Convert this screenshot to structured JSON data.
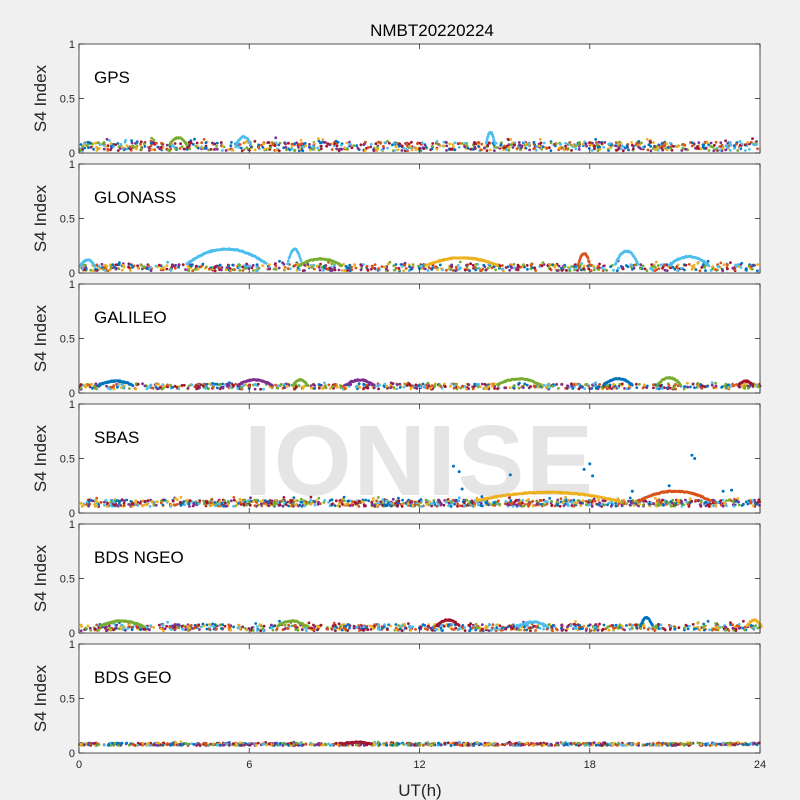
{
  "chart_data": {
    "type": "scatter",
    "title": "NMBT20220224",
    "xlabel": "UT(h)",
    "ylabel": "S4 Index",
    "xlim": [
      0,
      24
    ],
    "ylim": [
      0,
      1
    ],
    "x_ticks": [
      "0",
      "6",
      "12",
      "18",
      "24"
    ],
    "y_ticks": [
      "0",
      "0.5",
      "1"
    ],
    "watermark": "IONISE",
    "series_colors": [
      "#0072BD",
      "#D95319",
      "#EDB120",
      "#7E2F8E",
      "#77AC30",
      "#4DBEEE",
      "#A2142F"
    ],
    "panels": [
      {
        "label": "GPS",
        "baseline": 0.06,
        "spread": 0.04,
        "density": 900,
        "bumps": [
          [
            5.8,
            0.15,
            0.5,
            5
          ],
          [
            14.5,
            0.19,
            0.3,
            5
          ],
          [
            3.5,
            0.14,
            0.6,
            4
          ]
        ]
      },
      {
        "label": "GLONASS",
        "baseline": 0.05,
        "spread": 0.03,
        "density": 700,
        "bumps": [
          [
            0.3,
            0.12,
            0.5,
            5
          ],
          [
            5.2,
            0.22,
            2.8,
            5
          ],
          [
            7.6,
            0.22,
            0.5,
            5
          ],
          [
            8.5,
            0.13,
            1.5,
            4
          ],
          [
            13.5,
            0.14,
            2.5,
            2
          ],
          [
            17.8,
            0.18,
            0.4,
            1
          ],
          [
            19.3,
            0.2,
            0.8,
            5
          ],
          [
            21.5,
            0.15,
            1.4,
            5
          ]
        ]
      },
      {
        "label": "GALILEO",
        "baseline": 0.06,
        "spread": 0.025,
        "density": 700,
        "bumps": [
          [
            1.3,
            0.11,
            1.2,
            0
          ],
          [
            6.2,
            0.12,
            1.2,
            3
          ],
          [
            7.8,
            0.12,
            0.5,
            4
          ],
          [
            9.9,
            0.12,
            1.0,
            3
          ],
          [
            15.5,
            0.13,
            1.5,
            4
          ],
          [
            19.0,
            0.13,
            1.0,
            0
          ],
          [
            20.8,
            0.14,
            0.8,
            4
          ],
          [
            23.5,
            0.11,
            0.5,
            6
          ]
        ]
      },
      {
        "label": "SBAS",
        "baseline": 0.09,
        "spread": 0.03,
        "density": 1100,
        "bumps": [
          [
            16.5,
            0.19,
            5.0,
            2
          ],
          [
            21.0,
            0.2,
            2.5,
            1
          ]
        ],
        "outliers": [
          [
            13.2,
            0.43
          ],
          [
            13.4,
            0.38
          ],
          [
            13.5,
            0.22
          ],
          [
            14.2,
            0.15
          ],
          [
            15.2,
            0.35
          ],
          [
            17.8,
            0.4
          ],
          [
            18.0,
            0.45
          ],
          [
            18.1,
            0.34
          ],
          [
            21.6,
            0.53
          ],
          [
            21.7,
            0.5
          ],
          [
            20.8,
            0.25
          ],
          [
            23.0,
            0.21
          ],
          [
            22.7,
            0.2
          ],
          [
            19.5,
            0.2
          ]
        ]
      },
      {
        "label": "BDS NGEO",
        "baseline": 0.05,
        "spread": 0.03,
        "density": 800,
        "bumps": [
          [
            1.5,
            0.11,
            1.5,
            4
          ],
          [
            7.5,
            0.11,
            1.0,
            4
          ],
          [
            13.0,
            0.12,
            0.8,
            6
          ],
          [
            16.0,
            0.1,
            1.0,
            5
          ],
          [
            20.0,
            0.14,
            0.4,
            0
          ],
          [
            23.8,
            0.12,
            0.5,
            2
          ]
        ]
      },
      {
        "label": "BDS GEO",
        "baseline": 0.08,
        "spread": 0.012,
        "density": 1000,
        "bumps": [
          [
            9.8,
            0.1,
            1.0,
            6
          ]
        ]
      }
    ]
  }
}
